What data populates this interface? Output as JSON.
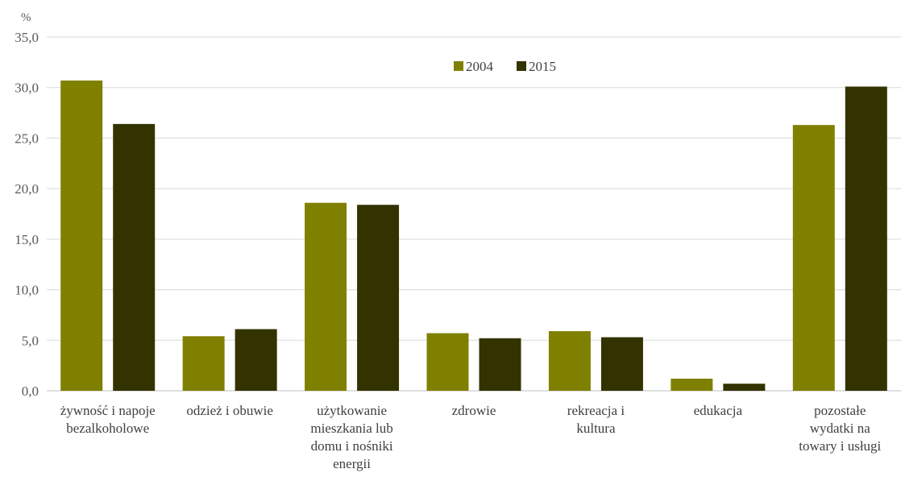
{
  "chart_data": {
    "type": "bar",
    "unit_label": "%",
    "ylim": [
      0,
      35
    ],
    "y_ticks": [
      "0,0",
      "5,0",
      "10,0",
      "15,0",
      "20,0",
      "25,0",
      "30,0",
      "35,0"
    ],
    "grid": true,
    "legend_position": "top-center",
    "categories": [
      [
        "żywność i napoje",
        "bezalkoholowe"
      ],
      [
        "odzież i obuwie"
      ],
      [
        "użytkowanie",
        "mieszkania lub",
        "domu i nośniki",
        "energii"
      ],
      [
        "zdrowie"
      ],
      [
        "rekreacja i",
        "kultura"
      ],
      [
        "edukacja"
      ],
      [
        "pozostałe",
        "wydatki na",
        "towary i usługi"
      ]
    ],
    "series": [
      {
        "name": "2004",
        "color": "#808000",
        "values": [
          30.7,
          5.4,
          18.6,
          5.7,
          5.9,
          1.2,
          26.3
        ]
      },
      {
        "name": "2015",
        "color": "#333300",
        "values": [
          26.4,
          6.1,
          18.4,
          5.2,
          5.3,
          0.7,
          30.1
        ]
      }
    ]
  }
}
